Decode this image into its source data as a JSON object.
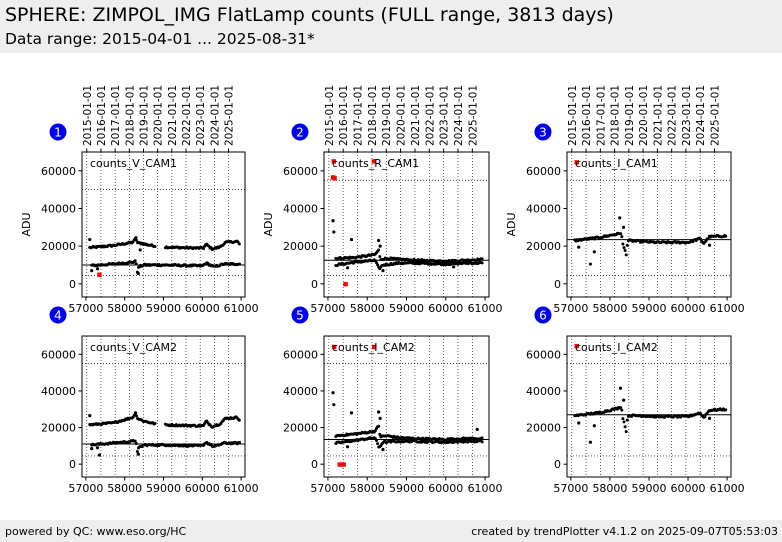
{
  "header": {
    "title": "SPHERE: ZIMPOL_IMG FlatLamp counts (FULL range, 3813 days)",
    "subtitle": "Data range: 2015-04-01 ... 2025-08-31*"
  },
  "footer": {
    "left": "powered by QC: www.eso.org/HC",
    "right": "created by trendPlotter v4.1.2 on 2025-09-07T05:53:03"
  },
  "colors": {
    "header_bg": "#eeeeee",
    "point": "#000000",
    "outlier": "#ff0000",
    "badge": "#0000ee",
    "badge_text": "#ffffff"
  },
  "top_axis_labels": [
    "2015-01-01",
    "2016-01-01",
    "2017-01-01",
    "2018-01-01",
    "2019-01-01",
    "2020-01-01",
    "2021-01-01",
    "2022-01-01",
    "2023-01-01",
    "2024-01-01",
    "2025-01-01"
  ],
  "chart_data": [
    {
      "id": 1,
      "badge": "1",
      "type": "scatter",
      "label": "counts_V_CAM1",
      "ylabel": "ADU",
      "xlim": [
        56900,
        61100
      ],
      "ylim": [
        -7000,
        70000
      ],
      "xticks": [
        "57000",
        "58000",
        "59000",
        "60000",
        "61000"
      ],
      "yticks": [
        "0",
        "20000",
        "40000",
        "60000"
      ],
      "ref_line": 10000,
      "upper_limit": 50000,
      "lower_limit": 4500,
      "tracks": [
        {
          "segments": [
            [
              57000,
              19000
            ],
            [
              57700,
              20300
            ],
            [
              58200,
              22000
            ],
            [
              58290,
              24000
            ],
            [
              58330,
              21800
            ],
            [
              58450,
              21500
            ],
            [
              58520,
              21000
            ],
            [
              58800,
              20000
            ]
          ],
          "range": [
            57100,
            58820
          ]
        },
        {
          "segments": [
            [
              59000,
              19500
            ],
            [
              59800,
              19000
            ],
            [
              60030,
              19000
            ],
            [
              60100,
              21000
            ],
            [
              60250,
              18500
            ],
            [
              60450,
              19500
            ],
            [
              60600,
              22000
            ],
            [
              60900,
              22500
            ],
            [
              61000,
              20000
            ]
          ],
          "range": [
            59050,
            60960
          ]
        },
        {
          "segments": [
            [
              57000,
              9500
            ],
            [
              57700,
              10500
            ],
            [
              58200,
              11500
            ],
            [
              58290,
              12000
            ],
            [
              58330,
              6000
            ],
            [
              58360,
              9000
            ],
            [
              58500,
              10000
            ],
            [
              59000,
              10000
            ],
            [
              60000,
              9500
            ],
            [
              60100,
              11000
            ],
            [
              60300,
              9000
            ],
            [
              60550,
              10500
            ],
            [
              61000,
              10500
            ]
          ],
          "range": [
            57150,
            60960
          ]
        }
      ],
      "points": [
        [
          57100,
          23500
        ],
        [
          57150,
          7000
        ],
        [
          57300,
          8000
        ],
        [
          58290,
          24500
        ],
        [
          58350,
          5500
        ],
        [
          58400,
          18000
        ]
      ],
      "outliers": [
        [
          57350,
          4800
        ]
      ]
    },
    {
      "id": 2,
      "badge": "2",
      "type": "scatter",
      "label": "counts_R_CAM1",
      "ylabel": "ADU",
      "xlim": [
        56900,
        61100
      ],
      "ylim": [
        -7000,
        70000
      ],
      "xticks": [
        "57000",
        "58000",
        "59000",
        "60000",
        "61000"
      ],
      "yticks": [
        "0",
        "20000",
        "40000",
        "60000"
      ],
      "ref_line": 12500,
      "upper_limit": 55000,
      "lower_limit": 4500,
      "tracks": [
        {
          "segments": [
            [
              57200,
              13500
            ],
            [
              57700,
              14000
            ],
            [
              58200,
              15500
            ],
            [
              58290,
              18000
            ],
            [
              58330,
              13000
            ],
            [
              58500,
              13500
            ],
            [
              58800,
              13000
            ],
            [
              59200,
              12500
            ],
            [
              60000,
              12000
            ],
            [
              60500,
              12500
            ],
            [
              60950,
              13000
            ]
          ],
          "range": [
            57200,
            60950
          ]
        },
        {
          "segments": [
            [
              57200,
              10000
            ],
            [
              57700,
              11500
            ],
            [
              58200,
              12500
            ],
            [
              58300,
              8000
            ],
            [
              58400,
              10000
            ],
            [
              58800,
              11000
            ],
            [
              59200,
              11000
            ],
            [
              60000,
              10500
            ],
            [
              60500,
              11000
            ],
            [
              60950,
              11000
            ]
          ],
          "range": [
            57200,
            60950
          ]
        }
      ],
      "points": [
        [
          57130,
          33500
        ],
        [
          57150,
          27500
        ],
        [
          57600,
          23500
        ],
        [
          58290,
          23000
        ],
        [
          58330,
          20000
        ],
        [
          58400,
          7000
        ],
        [
          57500,
          8500
        ],
        [
          60200,
          9000
        ]
      ],
      "outliers": [
        [
          57150,
          65000
        ],
        [
          57130,
          56500
        ],
        [
          57170,
          56000
        ],
        [
          57450,
          -200
        ],
        [
          58170,
          65000
        ]
      ]
    },
    {
      "id": 3,
      "badge": "3",
      "type": "scatter",
      "label": "counts_I_CAM1",
      "ylabel": "ADU",
      "xlim": [
        56900,
        61100
      ],
      "ylim": [
        -7000,
        70000
      ],
      "xticks": [
        "57000",
        "58000",
        "59000",
        "60000",
        "61000"
      ],
      "yticks": [
        "0",
        "20000",
        "40000",
        "60000"
      ],
      "ref_line": 23500,
      "upper_limit": 55000,
      "lower_limit": 4500,
      "tracks": [
        {
          "segments": [
            [
              57100,
              23000
            ],
            [
              57700,
              24500
            ],
            [
              58200,
              26500
            ],
            [
              58290,
              27000
            ],
            [
              58330,
              21000
            ],
            [
              58430,
              15000
            ],
            [
              58450,
              23000
            ],
            [
              58800,
              22500
            ],
            [
              59200,
              22000
            ],
            [
              60000,
              22000
            ],
            [
              60300,
              24000
            ],
            [
              60400,
              21500
            ],
            [
              60550,
              25000
            ],
            [
              61000,
              25500
            ]
          ],
          "range": [
            57100,
            60980
          ]
        }
      ],
      "points": [
        [
          57200,
          19500
        ],
        [
          57500,
          10500
        ],
        [
          57600,
          17000
        ],
        [
          58250,
          35000
        ],
        [
          58350,
          30000
        ],
        [
          60550,
          20500
        ]
      ],
      "outliers": [
        [
          57150,
          64500
        ]
      ]
    },
    {
      "id": 4,
      "badge": "4",
      "type": "scatter",
      "label": "counts_V_CAM2",
      "ylabel": "",
      "xlim": [
        56900,
        61100
      ],
      "ylim": [
        -7000,
        70000
      ],
      "xticks": [
        "57000",
        "58000",
        "59000",
        "60000",
        "61000"
      ],
      "yticks": [
        "0",
        "20000",
        "40000",
        "60000"
      ],
      "ref_line": 11000,
      "upper_limit": 55000,
      "lower_limit": 4500,
      "tracks": [
        {
          "segments": [
            [
              57100,
              21500
            ],
            [
              57700,
              22500
            ],
            [
              58200,
              25500
            ],
            [
              58290,
              27500
            ],
            [
              58330,
              25000
            ],
            [
              58500,
              23500
            ],
            [
              58800,
              22000
            ]
          ],
          "range": [
            57100,
            58820
          ]
        },
        {
          "segments": [
            [
              59000,
              21500
            ],
            [
              59800,
              21000
            ],
            [
              60030,
              21000
            ],
            [
              60100,
              23500
            ],
            [
              60250,
              20500
            ],
            [
              60450,
              22000
            ],
            [
              60600,
              25000
            ],
            [
              60900,
              25500
            ],
            [
              61000,
              23500
            ]
          ],
          "range": [
            59050,
            60960
          ]
        },
        {
          "segments": [
            [
              57100,
              10500
            ],
            [
              57700,
              11500
            ],
            [
              58200,
              12500
            ],
            [
              58290,
              13000
            ],
            [
              58330,
              6000
            ],
            [
              58360,
              9000
            ],
            [
              58500,
              10500
            ],
            [
              59000,
              10500
            ],
            [
              60000,
              10000
            ],
            [
              60100,
              12000
            ],
            [
              60300,
              9500
            ],
            [
              60550,
              11500
            ],
            [
              61000,
              11500
            ]
          ],
          "range": [
            57150,
            60960
          ]
        }
      ],
      "points": [
        [
          57100,
          26500
        ],
        [
          57150,
          8500
        ],
        [
          57300,
          9000
        ],
        [
          57350,
          5000
        ],
        [
          58280,
          28000
        ],
        [
          58350,
          5500
        ]
      ],
      "outliers": []
    },
    {
      "id": 5,
      "badge": "5",
      "type": "scatter",
      "label": "counts_I_CAM2",
      "ylabel": "",
      "xlim": [
        56900,
        61100
      ],
      "ylim": [
        -7000,
        70000
      ],
      "xticks": [
        "57000",
        "58000",
        "59000",
        "60000",
        "61000"
      ],
      "yticks": [
        "0",
        "20000",
        "40000",
        "60000"
      ],
      "ref_line": 13500,
      "upper_limit": 55000,
      "lower_limit": 4500,
      "tracks": [
        {
          "segments": [
            [
              57200,
              15500
            ],
            [
              57700,
              16500
            ],
            [
              58200,
              18000
            ],
            [
              58290,
              21000
            ],
            [
              58330,
              15000
            ],
            [
              58500,
              15500
            ],
            [
              58800,
              14500
            ],
            [
              59200,
              14000
            ],
            [
              60000,
              13500
            ],
            [
              60500,
              14000
            ],
            [
              60950,
              14000
            ]
          ],
          "range": [
            57200,
            60950
          ]
        },
        {
          "segments": [
            [
              57200,
              11500
            ],
            [
              57700,
              13000
            ],
            [
              58200,
              14500
            ],
            [
              58300,
              9000
            ],
            [
              58400,
              12000
            ],
            [
              58800,
              12500
            ],
            [
              59200,
              12500
            ],
            [
              60000,
              12000
            ],
            [
              60500,
              12500
            ],
            [
              60950,
              12500
            ]
          ],
          "range": [
            57200,
            60950
          ]
        }
      ],
      "points": [
        [
          57130,
          39000
        ],
        [
          57150,
          32500
        ],
        [
          57600,
          28000
        ],
        [
          58290,
          28500
        ],
        [
          58330,
          25000
        ],
        [
          58400,
          8000
        ],
        [
          57500,
          9500
        ],
        [
          60800,
          19000
        ]
      ],
      "outliers": [
        [
          57160,
          64000
        ],
        [
          57300,
          -200
        ],
        [
          57400,
          -200
        ],
        [
          58180,
          64000
        ]
      ]
    },
    {
      "id": 6,
      "badge": "6",
      "type": "scatter",
      "label": "counts_I_CAM2",
      "ylabel": "",
      "xlim": [
        56900,
        61100
      ],
      "ylim": [
        -7000,
        70000
      ],
      "xticks": [
        "57000",
        "58000",
        "59000",
        "60000",
        "61000"
      ],
      "yticks": [
        "0",
        "20000",
        "40000",
        "60000"
      ],
      "ref_line": 27000,
      "upper_limit": 55000,
      "lower_limit": 4500,
      "tracks": [
        {
          "segments": [
            [
              57100,
              26500
            ],
            [
              57700,
              28000
            ],
            [
              58200,
              30500
            ],
            [
              58290,
              31500
            ],
            [
              58330,
              25500
            ],
            [
              58430,
              17000
            ],
            [
              58450,
              26500
            ],
            [
              58800,
              26500
            ],
            [
              59200,
              26000
            ],
            [
              60000,
              26000
            ],
            [
              60300,
              28000
            ],
            [
              60400,
              25500
            ],
            [
              60550,
              29500
            ],
            [
              61000,
              30000
            ]
          ],
          "range": [
            57100,
            60980
          ]
        }
      ],
      "points": [
        [
          57200,
          22500
        ],
        [
          57500,
          12000
        ],
        [
          57600,
          21000
        ],
        [
          58270,
          41500
        ],
        [
          58350,
          35000
        ],
        [
          60550,
          25000
        ]
      ],
      "outliers": [
        [
          57150,
          64500
        ]
      ]
    }
  ]
}
